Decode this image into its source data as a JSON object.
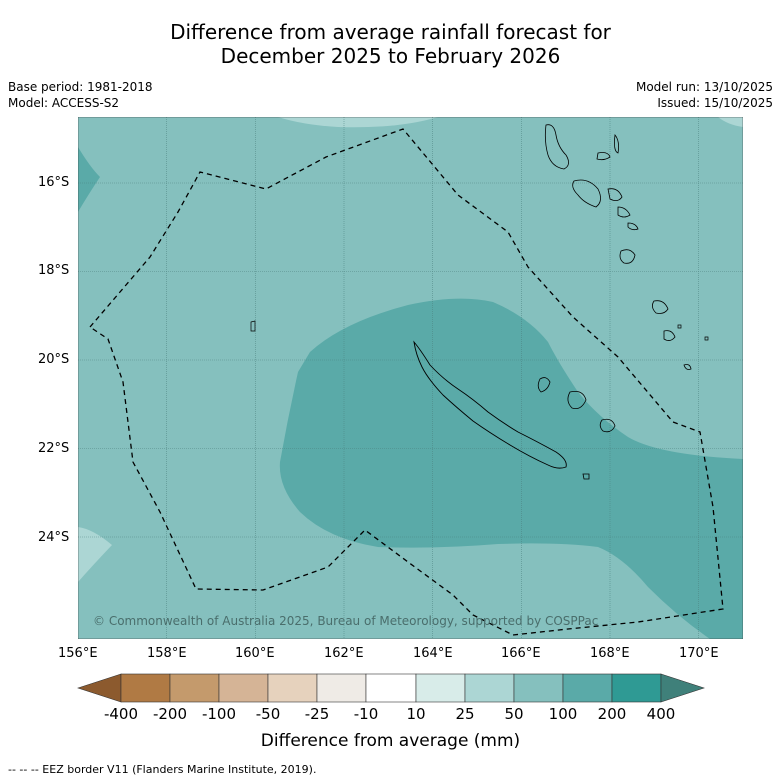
{
  "title_line1": "Difference from average rainfall forecast for",
  "title_line2": "December 2025 to February 2026",
  "meta_left": [
    "Base period: 1981-2018",
    "Model: ACCESS-S2"
  ],
  "meta_right": [
    "Model run: 13/10/2025",
    "Issued: 15/10/2025"
  ],
  "copyright": "© Commonwealth of Australia 2025, Bureau of Meteorology, supported by COSPPac",
  "lat_labels": [
    "16°S",
    "18°S",
    "20°S",
    "22°S",
    "24°S"
  ],
  "lon_labels": [
    "156°E",
    "158°E",
    "160°E",
    "162°E",
    "164°E",
    "166°E",
    "168°E",
    "170°E"
  ],
  "colorbar": {
    "labels": [
      "-400",
      "-200",
      "-100",
      "-50",
      "-25",
      "-10",
      "10",
      "25",
      "50",
      "100",
      "200",
      "400"
    ],
    "colors": [
      "#8c5a2e",
      "#b07a44",
      "#c49a6c",
      "#d5b496",
      "#e6d2bd",
      "#efebe6",
      "#ffffff",
      "#d8ece9",
      "#acd6d4",
      "#85c0be",
      "#5aaaa8",
      "#2f9a94",
      "#3f807a"
    ],
    "title": "Difference from average (mm)"
  },
  "legend_note": "--  --  -- EEZ border V11 (Flanders Marine Institute, 2019).",
  "map_colors": {
    "base": "#85c0be",
    "wet": "#5aaaa8",
    "dry_patch": "#acd6d4",
    "grid": "#4a7f7d"
  }
}
